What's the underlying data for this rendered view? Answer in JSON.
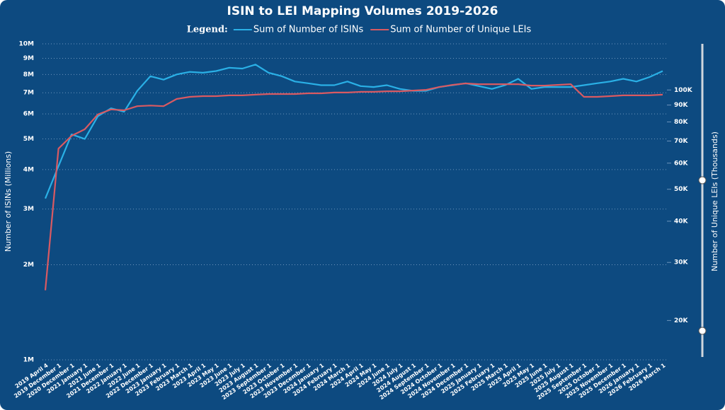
{
  "chart_data": {
    "type": "line",
    "title": "ISIN to LEI Mapping Volumes 2019-2026",
    "legend_title": "Legend:",
    "y_label": "Number of ISINs (Millions)",
    "y2_label": "Number of Unique LEIs (Thousands)",
    "yscale": "log",
    "y2scale": "log",
    "grid": true,
    "categories": [
      "2019 April 4",
      "2019 December 1",
      "2020 December 1",
      "2021 January 1",
      "2021 June 1",
      "2021 December 1",
      "2022 January 1",
      "2022 June 1",
      "2022 December 1",
      "2023 January 1",
      "2023 February 1",
      "2023 March 1",
      "2023 April 1",
      "2023 May 1",
      "2023 June 1",
      "2023 July 1",
      "2023 August 1",
      "2023 September 1",
      "2023 October 1",
      "2023 November 1",
      "2023 December 1",
      "2024 January 1",
      "2024 February 1",
      "2024 March 1",
      "2024 April 1",
      "2024 May 1",
      "2024 June 1",
      "2024 July 1",
      "2024 August 1",
      "2024 September 1",
      "2024 October 1",
      "2024 November 1",
      "2024 December 1",
      "2025 January 1",
      "2025 February 1",
      "2025 March 1",
      "2025 April 1",
      "2025 May 1",
      "2025 June 1",
      "2025 July 1",
      "2025 August 1",
      "2025 September 1",
      "2025 October 1",
      "2025 November 1",
      "2025 December 1",
      "2026 January 1",
      "2026 February 1",
      "2026 March 1"
    ],
    "series": [
      {
        "name": "Sum of Number of ISINs",
        "color": "#2ab0e6",
        "axis": "y",
        "values": [
          3240000,
          4100000,
          5170000,
          5000000,
          5900000,
          6250000,
          6100000,
          7100000,
          7900000,
          7700000,
          8000000,
          8150000,
          8100000,
          8200000,
          8400000,
          8350000,
          8600000,
          8100000,
          7900000,
          7600000,
          7500000,
          7400000,
          7400000,
          7600000,
          7350000,
          7300000,
          7400000,
          7200000,
          7100000,
          7100000,
          7300000,
          7400000,
          7500000,
          7350000,
          7200000,
          7400000,
          7750000,
          7200000,
          7300000,
          7300000,
          7300000,
          7400000,
          7500000,
          7600000,
          7750000,
          7600000,
          7850000,
          8200000
        ]
      },
      {
        "name": "Sum of Number of Unique LEIs",
        "color": "#d95a62",
        "axis": "y2",
        "values": [
          24700,
          66400,
          72600,
          76000,
          84300,
          87300,
          86800,
          89300,
          89700,
          89300,
          93900,
          95300,
          95800,
          95800,
          96300,
          96300,
          96800,
          97200,
          97200,
          97200,
          97700,
          97700,
          98200,
          98200,
          98700,
          98700,
          99100,
          99100,
          99600,
          100100,
          102100,
          103600,
          104700,
          104100,
          104100,
          104100,
          104100,
          103100,
          103100,
          103600,
          104100,
          95300,
          95300,
          95800,
          96300,
          96300,
          96300,
          96800
        ]
      }
    ],
    "ylim": [
      1000000,
      10000000
    ],
    "yticks": [
      {
        "value": 1000000,
        "label": "1M"
      },
      {
        "value": 2000000,
        "label": "2M"
      },
      {
        "value": 3000000,
        "label": "3M"
      },
      {
        "value": 4000000,
        "label": "4M"
      },
      {
        "value": 5000000,
        "label": "5M"
      },
      {
        "value": 6000000,
        "label": "6M"
      },
      {
        "value": 7000000,
        "label": "7M"
      },
      {
        "value": 8000000,
        "label": "8M"
      },
      {
        "value": 9000000,
        "label": "9M"
      },
      {
        "value": 10000000,
        "label": "10M"
      }
    ],
    "y2lim": [
      15200,
      138000
    ],
    "y2ticks": [
      {
        "value": 20000,
        "label": "20K"
      },
      {
        "value": 30000,
        "label": "30K"
      },
      {
        "value": 40000,
        "label": "40K"
      },
      {
        "value": 50000,
        "label": "50K"
      },
      {
        "value": 60000,
        "label": "60K"
      },
      {
        "value": 70000,
        "label": "70K"
      },
      {
        "value": 80000,
        "label": "80K"
      },
      {
        "value": 90000,
        "label": "90K"
      },
      {
        "value": 100000,
        "label": "100K"
      }
    ]
  }
}
